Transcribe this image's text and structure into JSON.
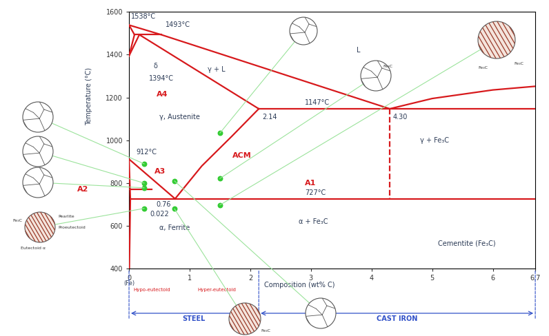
{
  "chart_data": {
    "type": "line",
    "xlabel": "Composition (wt% C)",
    "ylabel": "Temperature (°C)",
    "xlim": [
      0,
      6.7
    ],
    "xticks": [
      0,
      1,
      2,
      3,
      4,
      5,
      6,
      6.7
    ],
    "ylim": [
      400,
      1600
    ],
    "yticks": [
      400,
      600,
      800,
      1000,
      1200,
      1400,
      1600
    ],
    "grid": false,
    "color": "#d7191c",
    "series": [
      {
        "x": [
          0,
          0.53,
          4.3
        ],
        "values": [
          1538,
          1493,
          1147
        ],
        "line_style": "solid"
      },
      {
        "x": [
          4.3,
          5,
          6,
          6.7
        ],
        "values": [
          1147,
          1195,
          1235,
          1252
        ],
        "line_style": "solid"
      },
      {
        "x": [
          0,
          0.09
        ],
        "values": [
          1538,
          1493
        ],
        "line_style": "solid"
      },
      {
        "x": [
          0.09,
          0.53
        ],
        "values": [
          1493,
          1493
        ],
        "line_style": "solid"
      },
      {
        "x": [
          0,
          0.09
        ],
        "values": [
          1394,
          1493
        ],
        "line_style": "solid"
      },
      {
        "x": [
          0,
          0.17
        ],
        "values": [
          1394,
          1493
        ],
        "line_style": "solid"
      },
      {
        "x": [
          0.17,
          2.14
        ],
        "values": [
          1493,
          1147
        ],
        "line_style": "solid"
      },
      {
        "x": [
          2.14,
          6.7
        ],
        "values": [
          1147,
          1147
        ],
        "line_style": "solid"
      },
      {
        "x": [
          0.76,
          1.2,
          1.7,
          2.14
        ],
        "values": [
          727,
          880,
          1020,
          1147
        ],
        "line_style": "solid"
      },
      {
        "x": [
          0,
          0.76
        ],
        "values": [
          912,
          727
        ],
        "line_style": "solid"
      },
      {
        "x": [
          0,
          0.022,
          0.005
        ],
        "values": [
          912,
          727,
          400
        ],
        "line_style": "solid"
      },
      {
        "x": [
          0.022,
          6.7
        ],
        "values": [
          727,
          727
        ],
        "line_style": "solid"
      },
      {
        "x": [
          0,
          0.38
        ],
        "values": [
          770,
          770
        ],
        "line_style": "solid"
      },
      {
        "x": [
          4.3,
          4.3
        ],
        "values": [
          1147,
          727
        ],
        "line_style": "dashed"
      },
      {
        "type": "scatter",
        "x": [
          0.25,
          0.25,
          0.25,
          0.25,
          0.75,
          0.75,
          1.5,
          1.5,
          1.5
        ],
        "values": [
          890,
          800,
          778,
          682,
          810,
          680,
          1034,
          822,
          698
        ],
        "color": "#33cc33",
        "marker": "circle"
      }
    ],
    "annotations": [
      {
        "text": "1538°C",
        "x": 0.03,
        "y": 1578
      },
      {
        "text": "1493°C",
        "x": 0.6,
        "y": 1540
      },
      {
        "text": "δ",
        "x": 0.4,
        "y": 1345
      },
      {
        "text": "1394°C",
        "x": 0.33,
        "y": 1290
      },
      {
        "text": "γ + L",
        "x": 1.3,
        "y": 1330
      },
      {
        "text": "L",
        "x": 3.75,
        "y": 1420
      },
      {
        "text": "γ, Austenite",
        "x": 0.5,
        "y": 1110
      },
      {
        "text": "2.14",
        "x": 2.2,
        "y": 1110
      },
      {
        "text": "1147°C",
        "x": 2.9,
        "y": 1175
      },
      {
        "text": "4.30",
        "x": 4.35,
        "y": 1110
      },
      {
        "text": "γ + Fe₃C",
        "x": 4.8,
        "y": 1000
      },
      {
        "text": "912°C",
        "x": 0.12,
        "y": 945
      },
      {
        "text": "727°C",
        "x": 2.9,
        "y": 755
      },
      {
        "text": "0.76",
        "x": 0.45,
        "y": 700
      },
      {
        "text": "0.022",
        "x": 0.35,
        "y": 655
      },
      {
        "text": "α, Ferrite",
        "x": 0.5,
        "y": 590
      },
      {
        "text": "α + Fe₃C",
        "x": 2.8,
        "y": 620
      },
      {
        "text": "Cementite (Fe₃C)",
        "x": 5.1,
        "y": 520
      }
    ],
    "critical_lines": [
      {
        "text": "A4",
        "x": 0.45,
        "y": 1215
      },
      {
        "text": "A3",
        "x": 0.42,
        "y": 855
      },
      {
        "text": "ACM",
        "x": 1.7,
        "y": 930
      },
      {
        "text": "A1",
        "x": 2.9,
        "y": 800
      },
      {
        "text": "A2",
        "x": -0.85,
        "y": 770
      }
    ],
    "axis_notes": [
      {
        "text": "(Fe)",
        "x": 0
      }
    ],
    "ranges": [
      {
        "text": "Hypo-eutectoid",
        "from": 0,
        "to": 0.76
      },
      {
        "text": "Hyper-eutectoid",
        "from": 0.76,
        "to": 2.14
      }
    ],
    "sections": [
      {
        "text": "STEEL",
        "from": 0,
        "to": 2.14
      },
      {
        "text": "CAST IRON",
        "from": 2.14,
        "to": 6.7
      }
    ],
    "icon_texts": [
      "Fe₃C",
      "Fe₃C",
      "Fe₃C",
      "Fe₃C",
      "Pearlite",
      "Proeutectoid",
      "Eutectoid α",
      "Fe₃C"
    ]
  }
}
